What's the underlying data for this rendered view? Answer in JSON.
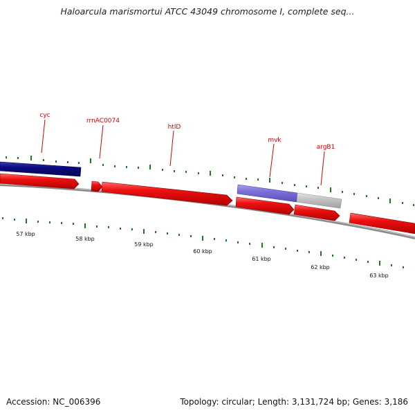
{
  "title": "Haloarcula marismortui ATCC 43049 chromosome I, complete seq...",
  "footer": {
    "accession": "Accession: NC_006396",
    "topology": "Topology: circular; Length: 3,131,724 bp; Genes: 3,186"
  },
  "colors": {
    "gene_red": "#e31010",
    "gene_navy": "#0a0a80",
    "gene_purple": "#7b6fd8",
    "gene_gray": "#c4c4c4",
    "label_red": "#cc0000",
    "tick_green": "#1a7a1a",
    "backbone": "#777777"
  },
  "axis": {
    "ticks": [
      {
        "label": "57 kbp"
      },
      {
        "label": "58 kbp"
      },
      {
        "label": "59 kbp"
      },
      {
        "label": "60 kbp"
      },
      {
        "label": "61 kbp"
      },
      {
        "label": "62 kbp"
      },
      {
        "label": "63 kbp"
      }
    ]
  },
  "gene_labels": [
    {
      "name": "cyc"
    },
    {
      "name": "rrnAC0074"
    },
    {
      "name": "htlD"
    },
    {
      "name": "mvk"
    },
    {
      "name": "argB1"
    }
  ]
}
